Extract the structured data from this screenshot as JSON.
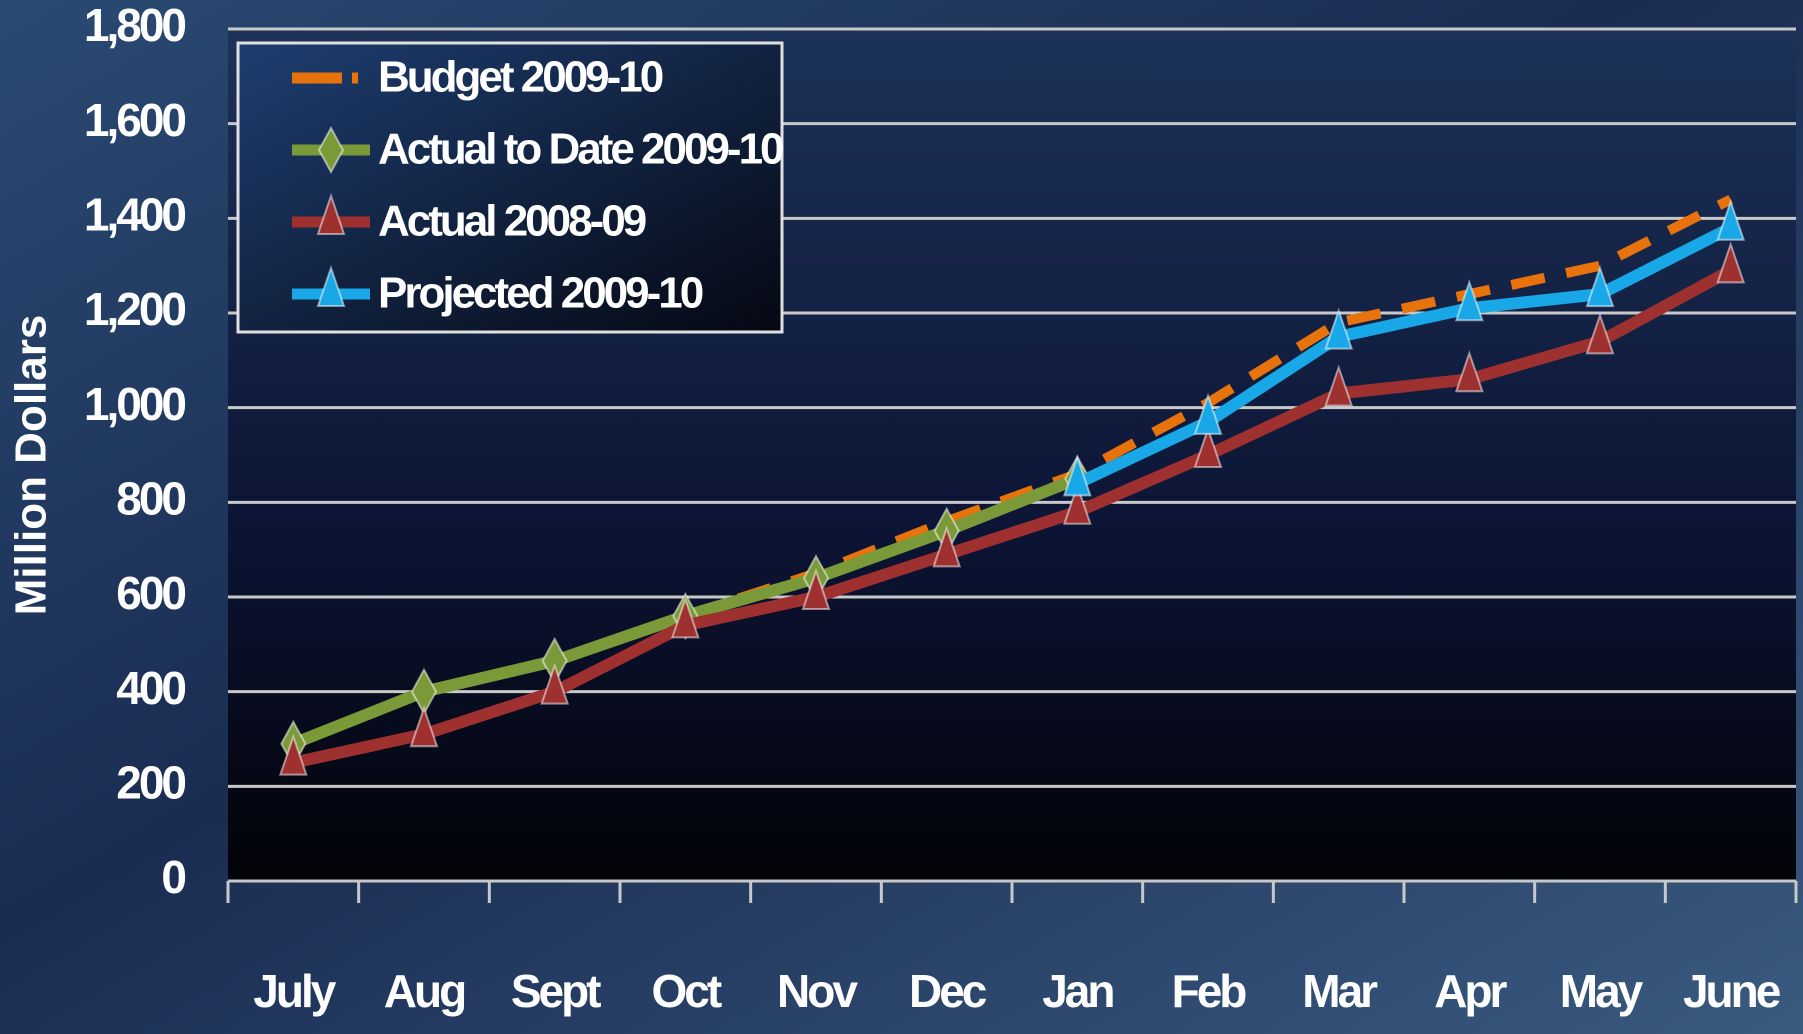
{
  "chart_data": {
    "type": "line",
    "y_label": "Million Dollars",
    "categories": [
      "July",
      "Aug",
      "Sept",
      "Oct",
      "Nov",
      "Dec",
      "Jan",
      "Feb",
      "Mar",
      "Apr",
      "May",
      "June"
    ],
    "ylim": [
      0,
      1800
    ],
    "yticks": [
      0,
      200,
      400,
      600,
      800,
      {
        "value": 1000,
        "label": "1,000"
      },
      {
        "value": 1200,
        "label": "1,200"
      },
      {
        "value": 1400,
        "label": "1,400"
      },
      {
        "value": 1600,
        "label": "1,600"
      },
      {
        "value": 1800,
        "label": "1,800"
      }
    ],
    "grid": true,
    "legend": "upper left",
    "series": [
      {
        "name": "Budget 2009-10",
        "color": "#e8720c",
        "dashed": true,
        "values": [
          null,
          null,
          null,
          560,
          650,
          760,
          860,
          1010,
          1180,
          1240,
          1300,
          1440
        ]
      },
      {
        "name": "Actual to Date 2009-10",
        "color": "#7a9a3a",
        "marker": "diamond",
        "values": [
          290,
          400,
          465,
          560,
          640,
          740,
          850,
          null,
          null,
          null,
          null,
          null
        ]
      },
      {
        "name": "Actual 2008-09",
        "color": "#9e3030",
        "marker": "triangle",
        "values": [
          250,
          310,
          400,
          540,
          600,
          690,
          780,
          900,
          1030,
          1060,
          1140,
          1290
        ]
      },
      {
        "name": "Projected 2009-10",
        "color": "#18a8e8",
        "marker": "triangle",
        "values": [
          null,
          null,
          null,
          null,
          null,
          null,
          840,
          970,
          1150,
          1210,
          1240,
          1380
        ]
      }
    ]
  }
}
